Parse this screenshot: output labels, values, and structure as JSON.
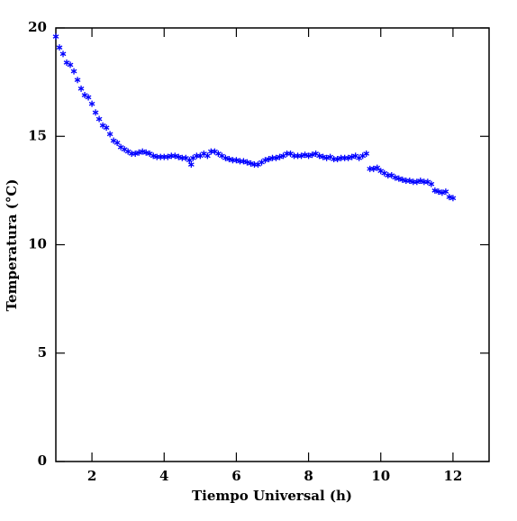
{
  "chart_data": {
    "type": "scatter",
    "x_label": "Tiempo Universal (h)",
    "y_label": "Temperatura (°C)",
    "color": "#0000ff",
    "marker": "asterisk",
    "xlim": [
      1,
      13
    ],
    "ylim": [
      0,
      20
    ],
    "xticks": [
      2,
      4,
      6,
      8,
      10,
      12
    ],
    "yticks": [
      0,
      5,
      10,
      15,
      20
    ],
    "x": [
      1.0,
      1.1,
      1.2,
      1.3,
      1.4,
      1.5,
      1.6,
      1.7,
      1.8,
      1.9,
      2.0,
      2.1,
      2.2,
      2.3,
      2.4,
      2.5,
      2.6,
      2.7,
      2.8,
      2.9,
      3.0,
      3.1,
      3.2,
      3.3,
      3.4,
      3.5,
      3.6,
      3.7,
      3.8,
      3.9,
      4.0,
      4.1,
      4.2,
      4.3,
      4.4,
      4.5,
      4.6,
      4.7,
      4.75,
      4.8,
      4.9,
      5.0,
      5.1,
      5.2,
      5.3,
      5.4,
      5.5,
      5.6,
      5.7,
      5.8,
      5.9,
      6.0,
      6.1,
      6.2,
      6.3,
      6.4,
      6.5,
      6.6,
      6.7,
      6.8,
      6.9,
      7.0,
      7.1,
      7.2,
      7.3,
      7.4,
      7.5,
      7.6,
      7.7,
      7.8,
      7.9,
      8.0,
      8.1,
      8.2,
      8.3,
      8.4,
      8.5,
      8.6,
      8.7,
      8.8,
      8.9,
      9.0,
      9.1,
      9.2,
      9.3,
      9.4,
      9.5,
      9.6,
      9.7,
      9.8,
      9.9,
      10.0,
      10.1,
      10.2,
      10.3,
      10.4,
      10.5,
      10.6,
      10.7,
      10.8,
      10.9,
      11.0,
      11.1,
      11.2,
      11.3,
      11.4,
      11.5,
      11.6,
      11.7,
      11.8,
      11.9,
      12.0
    ],
    "values": [
      19.6,
      19.1,
      18.8,
      18.4,
      18.3,
      18.0,
      17.6,
      17.2,
      16.9,
      16.8,
      16.5,
      16.1,
      15.8,
      15.5,
      15.4,
      15.1,
      14.8,
      14.7,
      14.5,
      14.4,
      14.3,
      14.2,
      14.2,
      14.25,
      14.3,
      14.25,
      14.2,
      14.1,
      14.05,
      14.05,
      14.05,
      14.05,
      14.1,
      14.1,
      14.05,
      14.0,
      14.0,
      13.9,
      13.7,
      14.0,
      14.1,
      14.1,
      14.2,
      14.1,
      14.3,
      14.3,
      14.2,
      14.1,
      14.0,
      13.95,
      13.9,
      13.9,
      13.85,
      13.85,
      13.8,
      13.75,
      13.7,
      13.7,
      13.8,
      13.9,
      13.95,
      14.0,
      14.0,
      14.05,
      14.1,
      14.2,
      14.2,
      14.1,
      14.1,
      14.1,
      14.15,
      14.1,
      14.15,
      14.2,
      14.1,
      14.05,
      14.0,
      14.05,
      13.95,
      13.95,
      14.0,
      14.0,
      14.0,
      14.05,
      14.1,
      14.0,
      14.1,
      14.2,
      13.5,
      13.5,
      13.55,
      13.4,
      13.3,
      13.2,
      13.2,
      13.1,
      13.05,
      13.0,
      12.95,
      12.95,
      12.9,
      12.9,
      12.95,
      12.9,
      12.9,
      12.8,
      12.5,
      12.45,
      12.4,
      12.45,
      12.2,
      12.15
    ]
  }
}
